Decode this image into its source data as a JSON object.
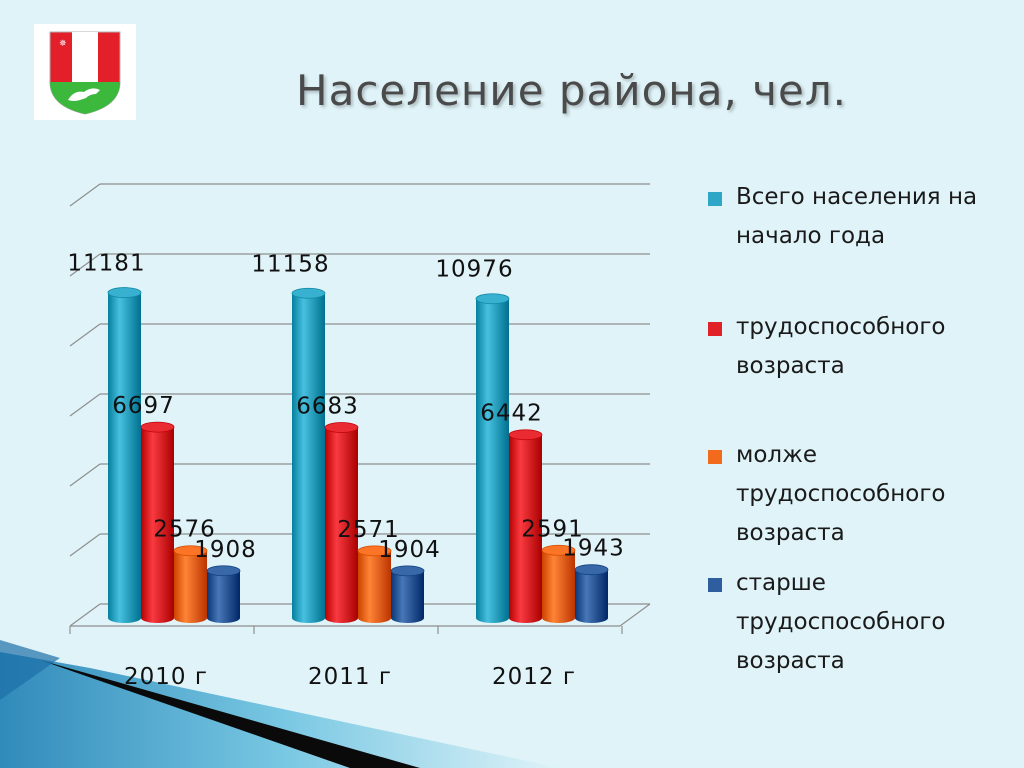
{
  "title": "Население района, чел.",
  "emblem": {
    "icon": "coat-of-arms-icon",
    "colors": {
      "red": "#e3202a",
      "green": "#3cb83c",
      "white": "#ffffff"
    }
  },
  "chart_data": {
    "type": "bar",
    "title": "",
    "xlabel": "",
    "ylabel": "",
    "categories": [
      "2010 г",
      "2011 г",
      "2012 г"
    ],
    "ylim": [
      0,
      14000
    ],
    "grid": true,
    "legend_position": "right",
    "series": [
      {
        "name": "Всего населения на начало года",
        "color": "#2ea7c6",
        "values": [
          11181,
          11158,
          10976
        ]
      },
      {
        "name": "трудоспособного возраста",
        "color": "#e02128",
        "values": [
          6697,
          6683,
          6442
        ]
      },
      {
        "name": "молже трудоспособного возраста",
        "color": "#f26b1d",
        "values": [
          2576,
          2571,
          2591
        ]
      },
      {
        "name": "старше трудоспособного возраста",
        "color": "#2f5e9e",
        "values": [
          1908,
          1904,
          1943
        ]
      }
    ]
  }
}
